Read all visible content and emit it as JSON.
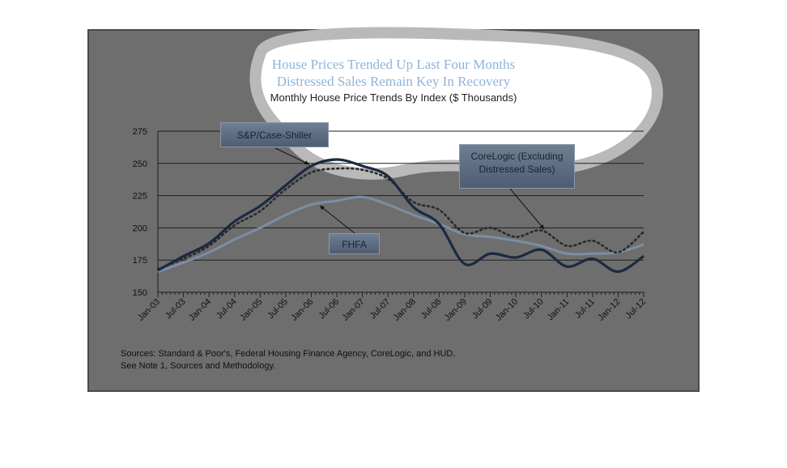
{
  "colors": {
    "background": "#6e6e6e",
    "frame_border": "#4a4a4a",
    "case_shiller_line": "#1b2a40",
    "fhfa_line": "#7b8ea5",
    "corelogic_line": "#2a2a2a",
    "highlight_blob": "#ffffff",
    "title_color": "#8fb4d8"
  },
  "callouts": {
    "case_shiller": "S&P/Case-Shiller",
    "fhfa": "FHFA",
    "corelogic_line1": "CoreLogic (Excluding",
    "corelogic_line2": "Distressed Sales)"
  },
  "footer": {
    "sources_line1": "Sources:  Standard & Poor's, Federal Housing Finance Agency, CoreLogic, and HUD.",
    "sources_line2": "See Note 1, Sources and Methodology."
  },
  "chart_data": {
    "type": "line",
    "title": "House Prices Trended Up Last Four Months",
    "title_line2": "Distressed Sales Remain Key In Recovery",
    "subtitle": "Monthly House Price Trends By Index ($ Thousands)",
    "xlabel": "",
    "ylabel": "",
    "ylim": [
      150,
      275
    ],
    "yticks": [
      150,
      175,
      200,
      225,
      250,
      275
    ],
    "grid": "horizontal",
    "x": [
      "Jan-03",
      "Jul-03",
      "Jan-04",
      "Jul-04",
      "Jan-05",
      "Jul-05",
      "Jan-06",
      "Jul-06",
      "Jan-07",
      "Jul-07",
      "Jan-08",
      "Jul-08",
      "Jan-09",
      "Jul-09",
      "Jan-10",
      "Jul-10",
      "Jan-11",
      "Jul-11",
      "Jan-12",
      "Jul-12"
    ],
    "series": [
      {
        "name": "S&P/Case-Shiller",
        "style": "solid-thick",
        "values": [
          167,
          178,
          188,
          205,
          217,
          233,
          248,
          253,
          248,
          240,
          216,
          203,
          172,
          180,
          177,
          183,
          170,
          176,
          166,
          178
        ]
      },
      {
        "name": "FHFA",
        "style": "solid",
        "values": [
          166,
          173,
          181,
          191,
          200,
          210,
          218,
          221,
          224,
          218,
          210,
          203,
          195,
          193,
          190,
          186,
          180,
          180,
          181,
          187
        ]
      },
      {
        "name": "CoreLogic (Excluding Distressed Sales)",
        "style": "dotted",
        "values": [
          168,
          176,
          186,
          202,
          213,
          230,
          243,
          246,
          245,
          238,
          220,
          214,
          196,
          200,
          193,
          198,
          186,
          190,
          181,
          197
        ]
      }
    ]
  }
}
